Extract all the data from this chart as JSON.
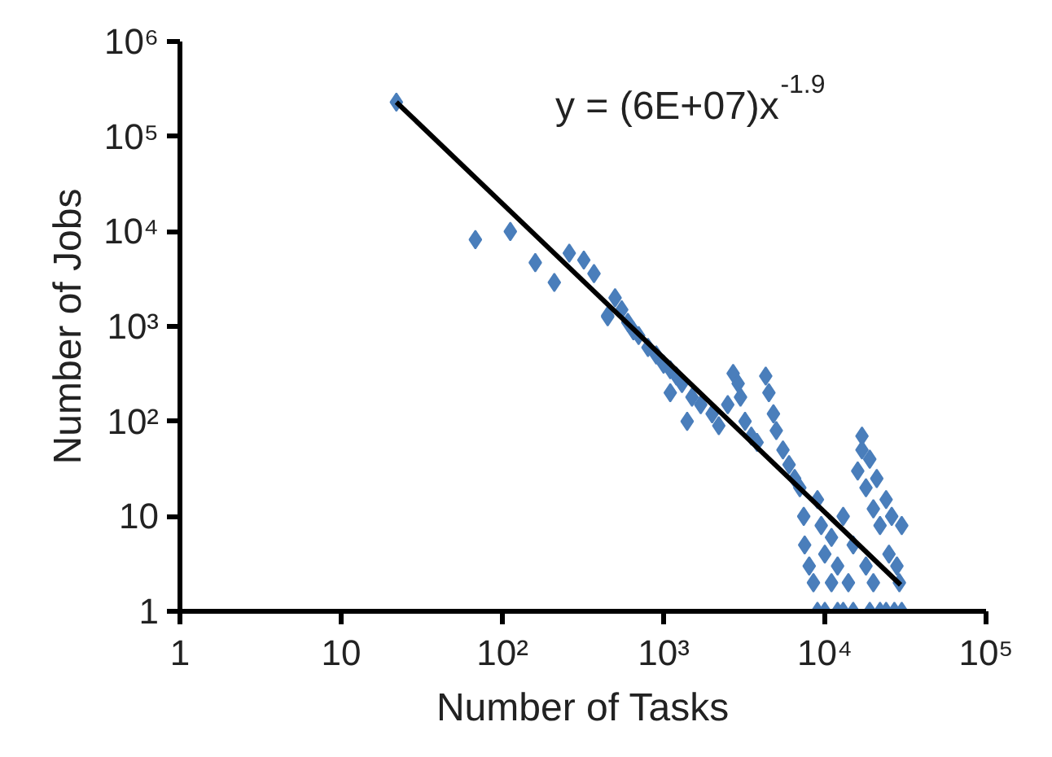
{
  "chart_data": {
    "type": "scatter",
    "xlabel": "Number of Tasks",
    "ylabel": "Number of Jobs",
    "log": "xy",
    "grid": false,
    "xlim": [
      1,
      100000
    ],
    "ylim": [
      1,
      1000000
    ],
    "xticks": [
      1,
      10,
      {
        "value": 100,
        "label": "10²"
      },
      {
        "value": 1000,
        "label": "10³"
      },
      {
        "value": 10000,
        "label": "10⁴"
      },
      {
        "value": 100000,
        "label": "10⁵"
      }
    ],
    "yticks": [
      1,
      10,
      {
        "value": 100,
        "label": "10²"
      },
      {
        "value": 1000,
        "label": "10³"
      },
      {
        "value": 10000,
        "label": "10⁴"
      },
      {
        "value": 100000,
        "label": "10⁵"
      },
      {
        "value": 1000000,
        "label": "10⁶"
      }
    ],
    "annotations": [
      "y = (6E+07)x$^{-1.9}$"
    ],
    "series": [
      {
        "marker": "diamond",
        "color": "#4a7ebb",
        "x": [
          22,
          68,
          112,
          160,
          210,
          260,
          320,
          370,
          450,
          450,
          500,
          550,
          600,
          650,
          700,
          800,
          900,
          1000,
          1100,
          1200,
          1300,
          1100,
          1500,
          1700,
          1400,
          2000,
          2200,
          2500,
          2700,
          2900,
          3000,
          3200,
          3500,
          3800,
          4300,
          4500,
          4800,
          5000,
          5500,
          6000,
          6500,
          7000,
          7400,
          7500,
          8000,
          8500,
          9000,
          9500,
          10000,
          10000,
          11000,
          11000,
          12000,
          12000,
          13000,
          13000,
          14000,
          15000,
          15000,
          16000,
          17000,
          17000,
          18000,
          18000,
          19000,
          19000,
          20000,
          20000,
          21000,
          22000,
          22000,
          24000,
          24000,
          25000,
          26000,
          27000,
          28000,
          29000,
          30000,
          30000,
          9000
        ],
        "values": [
          230000,
          8200,
          10000,
          4700,
          2900,
          5900,
          5000,
          3600,
          1260,
          1300,
          2000,
          1500,
          1100,
          900,
          800,
          600,
          500,
          400,
          350,
          300,
          250,
          200,
          180,
          150,
          100,
          120,
          90,
          150,
          320,
          250,
          180,
          100,
          70,
          60,
          300,
          200,
          120,
          80,
          50,
          35,
          25,
          20,
          10,
          5,
          3,
          2,
          15,
          8,
          4,
          1,
          2,
          6,
          3,
          1,
          1,
          10,
          2,
          5,
          1,
          30,
          70,
          50,
          20,
          3,
          1,
          40,
          12,
          2,
          25,
          8,
          1,
          15,
          1,
          4,
          10,
          1,
          3,
          2,
          8,
          1,
          1
        ]
      },
      {
        "type": "line",
        "color": "#000000",
        "x": [
          22,
          29500
        ],
        "values": [
          230000,
          1.9
        ]
      }
    ]
  }
}
